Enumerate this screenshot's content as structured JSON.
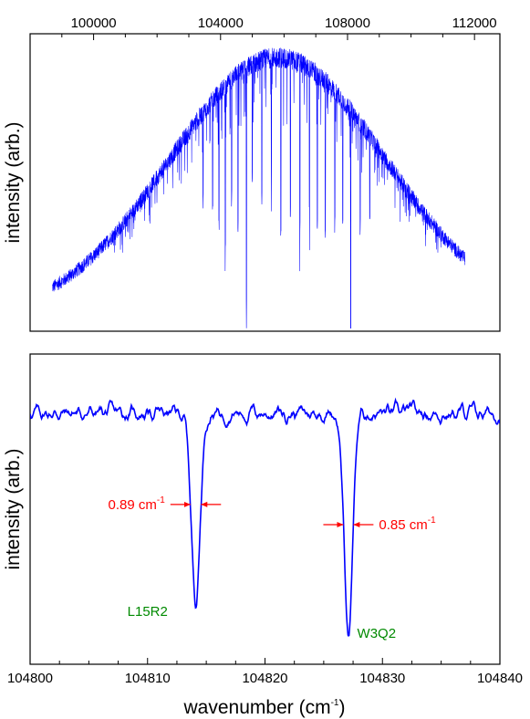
{
  "chart_data": [
    {
      "type": "line",
      "panel": "top",
      "title": "",
      "xlabel": "",
      "ylabel": "intensity (arb.)",
      "x_axis_position": "top",
      "xlim": [
        98000,
        112800
      ],
      "xticks": [
        100000,
        104000,
        108000,
        112000
      ],
      "xtick_labels": [
        "100000",
        "104000",
        "108000",
        "112000"
      ],
      "yticks_shown": false,
      "ylim": [
        0,
        1
      ],
      "grid": false,
      "legend": "none",
      "series_color": "#0000ff",
      "envelope": {
        "x_start": 98700,
        "x_end": 111700,
        "center": 105800,
        "sigma": 3400,
        "baseline": 0.05,
        "peak": 0.92,
        "noise_amplitude": 0.035
      },
      "absorption_lines": [
        {
          "x": 103450,
          "depth": 0.3
        },
        {
          "x": 103750,
          "depth": 0.35
        },
        {
          "x": 103950,
          "depth": 0.45
        },
        {
          "x": 104150,
          "depth": 0.55
        },
        {
          "x": 104350,
          "depth": 0.4
        },
        {
          "x": 104550,
          "depth": 0.5
        },
        {
          "x": 104814,
          "depth": 0.8
        },
        {
          "x": 105000,
          "depth": 0.38
        },
        {
          "x": 105300,
          "depth": 0.45
        },
        {
          "x": 105600,
          "depth": 0.35
        },
        {
          "x": 105900,
          "depth": 0.6
        },
        {
          "x": 106200,
          "depth": 0.5
        },
        {
          "x": 106500,
          "depth": 0.55
        },
        {
          "x": 106800,
          "depth": 0.48
        },
        {
          "x": 107050,
          "depth": 0.52
        },
        {
          "x": 107300,
          "depth": 0.5
        },
        {
          "x": 107600,
          "depth": 0.45
        },
        {
          "x": 107850,
          "depth": 0.42
        },
        {
          "x": 108100,
          "depth": 0.82
        },
        {
          "x": 108400,
          "depth": 0.35
        },
        {
          "x": 108700,
          "depth": 0.28
        }
      ]
    },
    {
      "type": "line",
      "panel": "bottom",
      "title": "",
      "xlabel": "wavenumber (cm",
      "xlabel_sup": "-1",
      "xlabel_close": ")",
      "ylabel": "intensity (arb.)",
      "xlim": [
        104800,
        104840
      ],
      "xticks": [
        104800,
        104810,
        104820,
        104830,
        104840
      ],
      "xtick_labels": [
        "104800",
        "104810",
        "104820",
        "104830",
        "104840"
      ],
      "minor_xtick_step": 2.5,
      "yticks_shown": false,
      "ylim": [
        0,
        1
      ],
      "grid": false,
      "legend": "none",
      "series_color": "#0000ff",
      "baseline_level": 0.81,
      "noise_amplitude": 0.022,
      "absorption_lines": [
        {
          "x": 104814.1,
          "fwhm": 0.89,
          "depth": 0.6
        },
        {
          "x": 104827.1,
          "fwhm": 0.85,
          "depth": 0.72
        }
      ],
      "annotations": [
        {
          "type": "width",
          "text": "0.89 cm",
          "sup": "-1",
          "color": "#ff0000",
          "x_center": 104814.1,
          "y": 0.515,
          "half_width": 0.445
        },
        {
          "type": "width",
          "text": "0.85 cm",
          "sup": "-1",
          "color": "#ff0000",
          "x_center": 104827.1,
          "y": 0.45,
          "half_width": 0.425
        },
        {
          "type": "label",
          "text": "L15R2",
          "color": "#008a00",
          "x": 104810.0,
          "y": 0.17
        },
        {
          "type": "label",
          "text": "W3Q2",
          "color": "#008a00",
          "x": 104829.5,
          "y": 0.1
        }
      ]
    }
  ]
}
